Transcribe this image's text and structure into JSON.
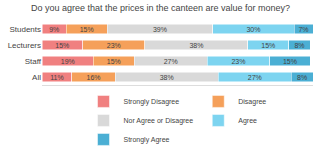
{
  "chart_data": {
    "type": "bar",
    "orientation": "horizontal",
    "stacked": true,
    "title": "Do you agree that the prices in the canteen are value for money?",
    "categories": [
      "Students",
      "Lecturers",
      "Staff",
      "All"
    ],
    "series": [
      {
        "name": "Strongly Disagree",
        "color": "#f08080",
        "values": [
          9,
          15,
          19,
          11
        ],
        "value_labels": [
          "9%",
          "15%",
          "19%",
          "11%"
        ]
      },
      {
        "name": "Disagree",
        "color": "#f5a05a",
        "values": [
          15,
          23,
          15,
          16
        ],
        "value_labels": [
          "15%",
          "23%",
          "15%",
          "16%"
        ]
      },
      {
        "name": "Nor Agree or Disagree",
        "color": "#d9d9d9",
        "values": [
          39,
          38,
          27,
          38
        ],
        "value_labels": [
          "39%",
          "38%",
          "27%",
          "38%"
        ]
      },
      {
        "name": "Agree",
        "color": "#7dd4f0",
        "values": [
          30,
          15,
          23,
          27
        ],
        "value_labels": [
          "30%",
          "15%",
          "23%",
          "27%"
        ]
      },
      {
        "name": "Strongly Agree",
        "color": "#4bafd4",
        "values": [
          7,
          8,
          15,
          8
        ],
        "value_labels": [
          "7%",
          "8%",
          "15%",
          "8%"
        ]
      }
    ],
    "xlim": [
      0,
      100
    ],
    "tick_labels": "y",
    "data_labels": true,
    "grid": false,
    "legend": "bottom"
  }
}
